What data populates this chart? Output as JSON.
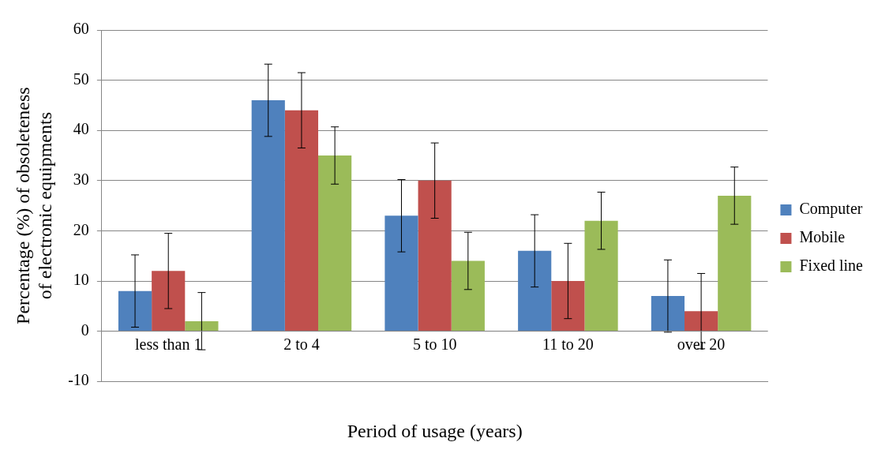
{
  "chart_data": {
    "type": "bar",
    "xlabel": "Period of usage (years)",
    "ylabel": "Percentage (%) of obsoleteness of electronic equipments",
    "categories": [
      "less than 1",
      "2 to 4",
      "5 to 10",
      "11 to 20",
      "over 20"
    ],
    "series": [
      {
        "name": "Computer",
        "color": "#4f81bd",
        "values": [
          8,
          46,
          23,
          16,
          7
        ],
        "errors": [
          7.2,
          7.2,
          7.2,
          7.2,
          7.2
        ]
      },
      {
        "name": "Mobile",
        "color": "#c0504d",
        "values": [
          12,
          44,
          30,
          10,
          4
        ],
        "errors": [
          7.5,
          7.5,
          7.5,
          7.5,
          7.5
        ]
      },
      {
        "name": "Fixed line",
        "color": "#9bbb59",
        "values": [
          2,
          35,
          14,
          22,
          27
        ],
        "errors": [
          5.7,
          5.7,
          5.7,
          5.7,
          5.7
        ]
      }
    ],
    "ylim": [
      -10,
      60
    ],
    "yticks": [
      -10,
      0,
      10,
      20,
      30,
      40,
      50,
      60
    ],
    "grid": "y",
    "legend": "right"
  }
}
